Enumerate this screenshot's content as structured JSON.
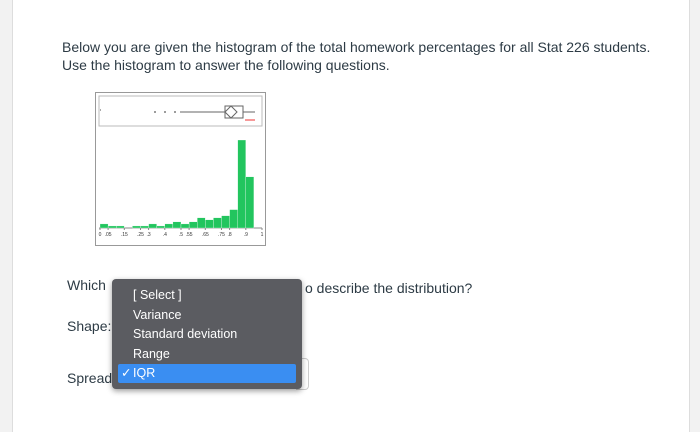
{
  "instructions": {
    "lines": [
      "Below you are given the histogram of the total homework percentages for all Stat 226 students.",
      "Use the histogram to answer the following questions."
    ]
  },
  "histogram": {
    "bins": [
      0,
      0.05,
      0.1,
      0.15,
      0.2,
      0.25,
      0.3,
      0.35,
      0.4,
      0.45,
      0.5,
      0.55,
      0.6,
      0.65,
      0.7,
      0.75,
      0.8,
      0.85,
      0.9,
      0.95,
      1
    ],
    "counts": [
      2,
      1,
      1,
      0,
      1,
      1,
      2,
      1,
      2,
      3,
      2,
      3,
      5,
      4,
      5,
      6,
      9,
      43,
      25,
      0
    ],
    "color": "#22c55e",
    "xticks": [
      0,
      {
        "value": 0.05,
        "label": ".05"
      },
      {
        "value": 0.15,
        "label": ".15"
      },
      {
        "value": 0.25,
        "label": ".25"
      },
      {
        "value": 0.3,
        "label": ".3"
      },
      {
        "value": 0.4,
        "label": ".4"
      },
      {
        "value": 0.5,
        "label": ".5"
      },
      {
        "value": 0.55,
        "label": ".55"
      },
      {
        "value": 0.65,
        "label": ".65"
      },
      {
        "value": 0.75,
        "label": ".75"
      },
      {
        "value": 0.8,
        "label": ".8"
      },
      {
        "value": 0.9,
        "label": ".9"
      },
      1
    ]
  },
  "question": {
    "prefix": "Which",
    "suffix": "o describe the distribution?"
  },
  "fields": {
    "shape": "Shape:",
    "spread": "Spread"
  },
  "dropdown": {
    "options": [
      "[ Select ]",
      "Variance",
      "Standard deviation",
      "Range",
      "IQR"
    ],
    "selected": 4,
    "check": "✓"
  }
}
